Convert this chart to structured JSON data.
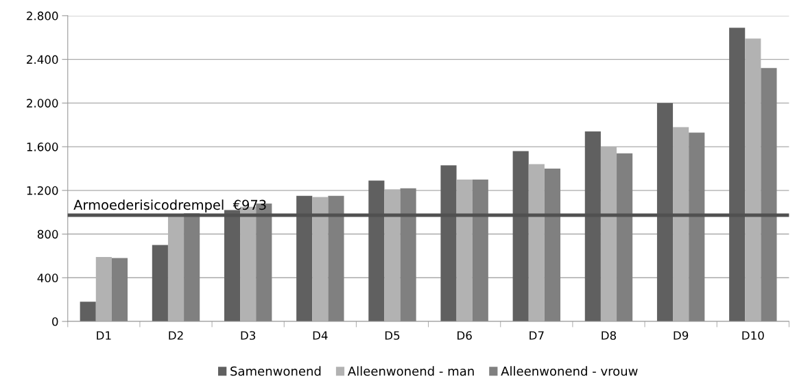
{
  "chart_data": {
    "type": "bar",
    "categories": [
      "D1",
      "D2",
      "D3",
      "D4",
      "D5",
      "D6",
      "D7",
      "D8",
      "D9",
      "D10"
    ],
    "series": [
      {
        "name": "Samenwonend",
        "color": "#606060",
        "values": [
          180,
          700,
          1020,
          1150,
          1290,
          1430,
          1560,
          1740,
          2000,
          2690
        ]
      },
      {
        "name": "Alleenwonend - man",
        "color": "#b2b2b2",
        "values": [
          590,
          970,
          1050,
          1140,
          1210,
          1300,
          1440,
          1600,
          1780,
          2590
        ]
      },
      {
        "name": "Alleenwonend - vrouw",
        "color": "#808080",
        "values": [
          580,
          990,
          1080,
          1150,
          1220,
          1300,
          1400,
          1540,
          1730,
          2320
        ]
      }
    ],
    "ylim": [
      0,
      2800
    ],
    "yticks": [
      {
        "value": 0,
        "label": "0"
      },
      {
        "value": 400,
        "label": "400"
      },
      {
        "value": 800,
        "label": "800"
      },
      {
        "value": 1200,
        "label": "1.200"
      },
      {
        "value": 1600,
        "label": "1.600"
      },
      {
        "value": 2000,
        "label": "2.000"
      },
      {
        "value": 2400,
        "label": "2.400"
      },
      {
        "value": 2800,
        "label": "2.800"
      }
    ],
    "ref_lines": [
      {
        "axis": "y",
        "value": 973,
        "label": "Armoederisicodrempel  €973",
        "color": "#505050"
      }
    ],
    "grid": "y",
    "legend": "bottom"
  }
}
